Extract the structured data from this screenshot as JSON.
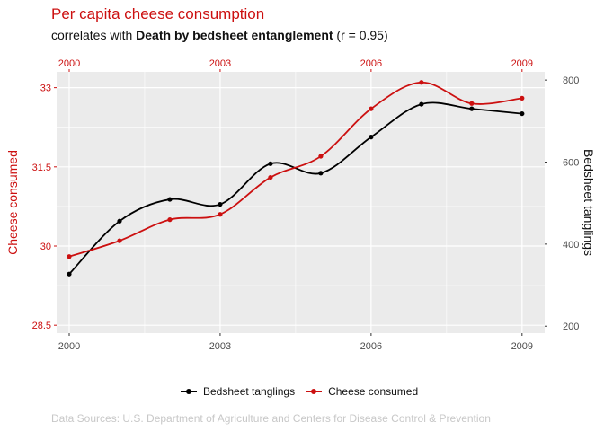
{
  "title": "Per capita cheese consumption",
  "subtitle": {
    "prefix": "correlates with ",
    "emphasis": "Death by bedsheet entanglement",
    "suffix": " (r = 0.95)"
  },
  "source": "Data Sources: U.S. Department of Agriculture and Centers for Disease Control & Prevention",
  "colors": {
    "cheese": "#cc1010",
    "bedsheet": "#000000",
    "panel": "#ebebeb",
    "grid": "#ffffff",
    "axis_text": "#4d4d4d"
  },
  "chart_data": {
    "type": "line",
    "x": [
      2000,
      2001,
      2002,
      2003,
      2004,
      2005,
      2006,
      2007,
      2008,
      2009
    ],
    "xlim": [
      1999.75,
      2009.45
    ],
    "x_ticks": [
      2000,
      2003,
      2006,
      2009
    ],
    "x_tick_labels": [
      "2000",
      "2003",
      "2006",
      "2009"
    ],
    "top_x_tick_labels": [
      "2000",
      "2003",
      "2006",
      "2009"
    ],
    "left_axis": {
      "label": "Cheese consumed",
      "lim": [
        28.35,
        33.3
      ],
      "ticks": [
        28.5,
        30,
        31.5,
        33
      ],
      "tick_labels": [
        "28.5",
        "30",
        "31.5",
        "33"
      ]
    },
    "right_axis": {
      "label": "Bedsheet tanglings",
      "lim": [
        183,
        820
      ],
      "ticks": [
        200,
        400,
        600,
        800
      ],
      "tick_labels": [
        "200",
        "400",
        "600",
        "800"
      ]
    },
    "series": [
      {
        "name": "Bedsheet tanglings",
        "axis": "right",
        "values": [
          327,
          456,
          509,
          497,
          596,
          573,
          661,
          741,
          730,
          718
        ]
      },
      {
        "name": "Cheese consumed",
        "axis": "left",
        "values": [
          29.8,
          30.1,
          30.5,
          30.6,
          31.3,
          31.7,
          32.6,
          33.1,
          32.7,
          32.8
        ]
      }
    ],
    "grid": true,
    "legend": "bottom"
  }
}
